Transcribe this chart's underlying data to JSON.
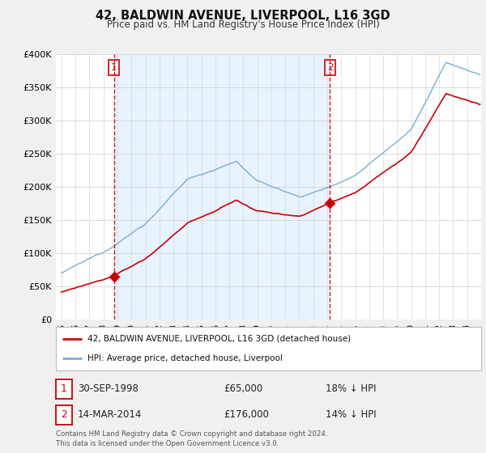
{
  "title": "42, BALDWIN AVENUE, LIVERPOOL, L16 3GD",
  "subtitle": "Price paid vs. HM Land Registry's House Price Index (HPI)",
  "legend_line1": "42, BALDWIN AVENUE, LIVERPOOL, L16 3GD (detached house)",
  "legend_line2": "HPI: Average price, detached house, Liverpool",
  "footnote": "Contains HM Land Registry data © Crown copyright and database right 2024.\nThis data is licensed under the Open Government Licence v3.0.",
  "table_rows": [
    {
      "num": "1",
      "date": "30-SEP-1998",
      "price": "£65,000",
      "hpi": "18% ↓ HPI"
    },
    {
      "num": "2",
      "date": "14-MAR-2014",
      "price": "£176,000",
      "hpi": "14% ↓ HPI"
    }
  ],
  "sale1_year": 1998.75,
  "sale1_price": 65000,
  "sale2_year": 2014.2,
  "sale2_price": 176000,
  "price_color": "#cc0000",
  "hpi_color": "#7aadd4",
  "vline_color": "#cc0000",
  "shade_color": "#ddeeff",
  "ylim": [
    0,
    400000
  ],
  "yticks": [
    0,
    50000,
    100000,
    150000,
    200000,
    250000,
    300000,
    350000,
    400000
  ],
  "xlim_min": 1994.6,
  "xlim_max": 2025.0,
  "bg_color": "#f0f0f0",
  "plot_bg": "#ffffff",
  "grid_color": "#d8d8d8"
}
